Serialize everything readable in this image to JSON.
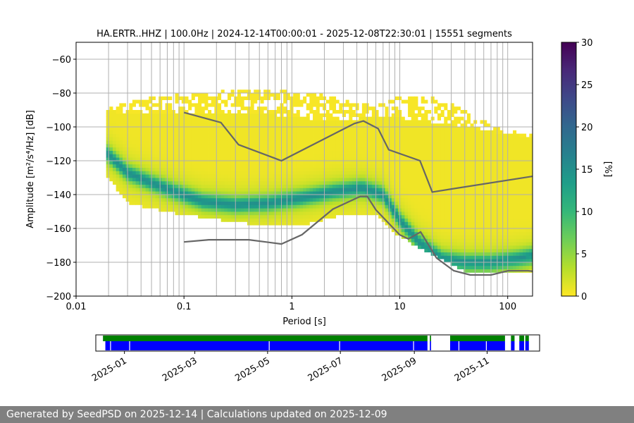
{
  "footer": {
    "text": "Generated by SeedPSD on 2025-12-14 | Calculations updated on 2025-12-09"
  },
  "colorbar": {
    "label": "[%]",
    "ticks": [
      0,
      5,
      10,
      15,
      20,
      25,
      30
    ],
    "range": [
      0,
      30
    ],
    "colormap": [
      "#fde725",
      "#b5de2b",
      "#6ece58",
      "#35b779",
      "#1f9e89",
      "#26828e",
      "#31688e",
      "#3e4989",
      "#482878",
      "#440154"
    ]
  },
  "chart_data": [
    {
      "type": "heatmap",
      "title": "HA.ERTR..HHZ | 100.0Hz | 2024-12-14T00:00:01 - 2025-12-08T22:30:01 | 15551 segments",
      "xlabel": "Period [s]",
      "ylabel": "Amplitude [m²/s⁴/Hz] [dB]",
      "xscale": "log",
      "xlim": [
        0.01,
        170
      ],
      "ylim": [
        -200,
        -50
      ],
      "x_tick_labels": [
        "0.01",
        "0.1",
        "1",
        "10",
        "100"
      ],
      "x_ticks": [
        0.01,
        0.1,
        1,
        10,
        100
      ],
      "y_ticks": [
        -200,
        -180,
        -160,
        -140,
        -120,
        -100,
        -80,
        -60
      ],
      "y_tick_labels": [
        "−200",
        "−180",
        "−160",
        "−140",
        "−120",
        "−100",
        "−80",
        "−60"
      ],
      "grid_vertical_periods": [
        0.02,
        0.03,
        0.04,
        0.05,
        0.06,
        0.07,
        0.08,
        0.09,
        0.1,
        0.2,
        0.3,
        0.4,
        0.5,
        0.6,
        0.7,
        0.8,
        0.9,
        1,
        2,
        3,
        4,
        5,
        6,
        7,
        8,
        9,
        10,
        20,
        30,
        40,
        50,
        60,
        70,
        80,
        90,
        100
      ],
      "grid_horizontal": true,
      "psd_mode": {
        "period": [
          0.019,
          0.03,
          0.05,
          0.08,
          0.15,
          0.3,
          0.6,
          1.2,
          2.5,
          4.5,
          7,
          10,
          15,
          25,
          40,
          70,
          120,
          170
        ],
        "db": [
          -115,
          -127,
          -133,
          -138,
          -144,
          -146,
          -145,
          -142,
          -138,
          -136,
          -140,
          -155,
          -168,
          -178,
          -180,
          -180,
          -178,
          -176
        ]
      },
      "psd_spread": {
        "period": [
          0.019,
          0.03,
          0.1,
          0.5,
          1.5,
          3,
          6,
          10,
          20,
          40,
          80,
          170
        ],
        "upper_db": [
          -90,
          -92,
          -91,
          -92,
          -95,
          -96,
          -94,
          -95,
          -97,
          -100,
          -103,
          -106
        ],
        "lower_db": [
          -128,
          -145,
          -152,
          -158,
          -157,
          -152,
          -152,
          -165,
          -175,
          -185,
          -186,
          -186
        ],
        "sparse_upper_db": [
          -90,
          -85,
          -80,
          -78,
          -80,
          -83,
          -88,
          -82,
          -82,
          -90,
          -100,
          -104
        ]
      },
      "nhnm": {
        "name": "",
        "period": [
          0.1,
          0.22,
          0.32,
          0.8,
          3.8,
          4.6,
          6.3,
          7.9,
          15.4,
          20,
          354.8
        ],
        "db": [
          -91.5,
          -97.4,
          -110.5,
          -120,
          -98,
          -96.5,
          -101,
          -113.5,
          -120,
          -138.5,
          -126
        ]
      },
      "nlnm": {
        "name": "",
        "period": [
          0.1,
          0.17,
          0.4,
          0.8,
          1.24,
          2.4,
          4.3,
          5,
          6,
          10,
          12,
          15.6,
          21.9,
          31.6,
          45,
          70,
          101,
          154,
          328
        ],
        "db": [
          -168,
          -166.7,
          -166.7,
          -169.2,
          -163.7,
          -148.6,
          -141.1,
          -141.1,
          -149,
          -163.8,
          -166.2,
          -162.1,
          -177.5,
          -185,
          -187.5,
          -187.5,
          -185,
          -185,
          -187.5
        ]
      }
    },
    {
      "type": "timeline",
      "x_tick_labels": [
        "2025-01",
        "2025-03",
        "2025-05",
        "2025-07",
        "2025-09",
        "2025-11"
      ],
      "x_ticks": [
        "2025-01-01",
        "2025-03-01",
        "2025-05-01",
        "2025-07-01",
        "2025-09-01",
        "2025-11-01"
      ],
      "xlim": [
        "2024-12-08",
        "2025-12-15"
      ],
      "green_segments": [
        [
          "2024-12-14",
          "2025-09-12"
        ],
        [
          "2025-09-14",
          "2025-09-15"
        ],
        [
          "2025-10-01",
          "2025-11-16"
        ],
        [
          "2025-11-21",
          "2025-11-24"
        ],
        [
          "2025-11-28",
          "2025-12-02"
        ],
        [
          "2025-12-03",
          "2025-12-06"
        ]
      ],
      "blue_segments": [
        [
          "2024-12-16",
          "2025-09-12"
        ],
        [
          "2025-09-14",
          "2025-09-15"
        ],
        [
          "2025-10-01",
          "2025-11-16"
        ],
        [
          "2025-11-21",
          "2025-11-24"
        ],
        [
          "2025-11-28",
          "2025-12-02"
        ],
        [
          "2025-12-03",
          "2025-12-06"
        ]
      ],
      "blue_gaps": [
        "2024-12-20",
        "2025-01-05",
        "2025-05-02",
        "2025-06-30",
        "2025-08-31",
        "2025-10-08",
        "2025-10-31"
      ]
    }
  ]
}
